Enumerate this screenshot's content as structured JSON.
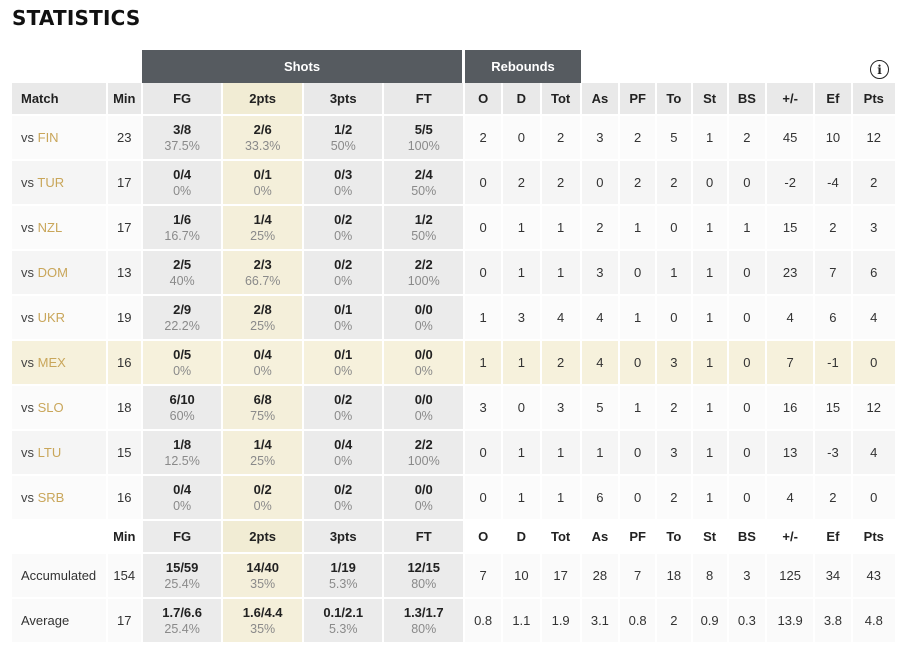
{
  "title": "STATISTICS",
  "groups": {
    "shots": "Shots",
    "rebounds": "Rebounds"
  },
  "headers": [
    "Match",
    "Min",
    "FG",
    "2pts",
    "3pts",
    "FT",
    "O",
    "D",
    "Tot",
    "As",
    "PF",
    "To",
    "St",
    "BS",
    "+/-",
    "Ef",
    "Pts"
  ],
  "rows": [
    {
      "vs": "vs",
      "opp": "FIN",
      "min": "23",
      "fg": [
        "3/8",
        "37.5%"
      ],
      "p2": [
        "2/6",
        "33.3%"
      ],
      "p3": [
        "1/2",
        "50%"
      ],
      "ft": [
        "5/5",
        "100%"
      ],
      "o": "2",
      "d": "0",
      "tot": "2",
      "as": "3",
      "pf": "2",
      "to": "5",
      "st": "1",
      "bs": "2",
      "pm": "45",
      "ef": "10",
      "pts": "12"
    },
    {
      "vs": "vs",
      "opp": "TUR",
      "min": "17",
      "fg": [
        "0/4",
        "0%"
      ],
      "p2": [
        "0/1",
        "0%"
      ],
      "p3": [
        "0/3",
        "0%"
      ],
      "ft": [
        "2/4",
        "50%"
      ],
      "o": "0",
      "d": "2",
      "tot": "2",
      "as": "0",
      "pf": "2",
      "to": "2",
      "st": "0",
      "bs": "0",
      "pm": "-2",
      "ef": "-4",
      "pts": "2"
    },
    {
      "vs": "vs",
      "opp": "NZL",
      "min": "17",
      "fg": [
        "1/6",
        "16.7%"
      ],
      "p2": [
        "1/4",
        "25%"
      ],
      "p3": [
        "0/2",
        "0%"
      ],
      "ft": [
        "1/2",
        "50%"
      ],
      "o": "0",
      "d": "1",
      "tot": "1",
      "as": "2",
      "pf": "1",
      "to": "0",
      "st": "1",
      "bs": "1",
      "pm": "15",
      "ef": "2",
      "pts": "3"
    },
    {
      "vs": "vs",
      "opp": "DOM",
      "min": "13",
      "fg": [
        "2/5",
        "40%"
      ],
      "p2": [
        "2/3",
        "66.7%"
      ],
      "p3": [
        "0/2",
        "0%"
      ],
      "ft": [
        "2/2",
        "100%"
      ],
      "o": "0",
      "d": "1",
      "tot": "1",
      "as": "3",
      "pf": "0",
      "to": "1",
      "st": "1",
      "bs": "0",
      "pm": "23",
      "ef": "7",
      "pts": "6"
    },
    {
      "vs": "vs",
      "opp": "UKR",
      "min": "19",
      "fg": [
        "2/9",
        "22.2%"
      ],
      "p2": [
        "2/8",
        "25%"
      ],
      "p3": [
        "0/1",
        "0%"
      ],
      "ft": [
        "0/0",
        "0%"
      ],
      "o": "1",
      "d": "3",
      "tot": "4",
      "as": "4",
      "pf": "1",
      "to": "0",
      "st": "1",
      "bs": "0",
      "pm": "4",
      "ef": "6",
      "pts": "4"
    },
    {
      "vs": "vs",
      "opp": "MEX",
      "min": "16",
      "fg": [
        "0/5",
        "0%"
      ],
      "p2": [
        "0/4",
        "0%"
      ],
      "p3": [
        "0/1",
        "0%"
      ],
      "ft": [
        "0/0",
        "0%"
      ],
      "o": "1",
      "d": "1",
      "tot": "2",
      "as": "4",
      "pf": "0",
      "to": "3",
      "st": "1",
      "bs": "0",
      "pm": "7",
      "ef": "-1",
      "pts": "0",
      "highlight": true
    },
    {
      "vs": "vs",
      "opp": "SLO",
      "min": "18",
      "fg": [
        "6/10",
        "60%"
      ],
      "p2": [
        "6/8",
        "75%"
      ],
      "p3": [
        "0/2",
        "0%"
      ],
      "ft": [
        "0/0",
        "0%"
      ],
      "o": "3",
      "d": "0",
      "tot": "3",
      "as": "5",
      "pf": "1",
      "to": "2",
      "st": "1",
      "bs": "0",
      "pm": "16",
      "ef": "15",
      "pts": "12"
    },
    {
      "vs": "vs",
      "opp": "LTU",
      "min": "15",
      "fg": [
        "1/8",
        "12.5%"
      ],
      "p2": [
        "1/4",
        "25%"
      ],
      "p3": [
        "0/4",
        "0%"
      ],
      "ft": [
        "2/2",
        "100%"
      ],
      "o": "0",
      "d": "1",
      "tot": "1",
      "as": "1",
      "pf": "0",
      "to": "3",
      "st": "1",
      "bs": "0",
      "pm": "13",
      "ef": "-3",
      "pts": "4"
    },
    {
      "vs": "vs",
      "opp": "SRB",
      "min": "16",
      "fg": [
        "0/4",
        "0%"
      ],
      "p2": [
        "0/2",
        "0%"
      ],
      "p3": [
        "0/2",
        "0%"
      ],
      "ft": [
        "0/0",
        "0%"
      ],
      "o": "0",
      "d": "1",
      "tot": "1",
      "as": "6",
      "pf": "0",
      "to": "2",
      "st": "1",
      "bs": "0",
      "pm": "4",
      "ef": "2",
      "pts": "0"
    }
  ],
  "summary_headers": [
    "",
    "Min",
    "FG",
    "2pts",
    "3pts",
    "FT",
    "O",
    "D",
    "Tot",
    "As",
    "PF",
    "To",
    "St",
    "BS",
    "+/-",
    "Ef",
    "Pts"
  ],
  "summary": [
    {
      "label": "Accumulated",
      "min": "154",
      "fg": [
        "15/59",
        "25.4%"
      ],
      "p2": [
        "14/40",
        "35%"
      ],
      "p3": [
        "1/19",
        "5.3%"
      ],
      "ft": [
        "12/15",
        "80%"
      ],
      "o": "7",
      "d": "10",
      "tot": "17",
      "as": "28",
      "pf": "7",
      "to": "18",
      "st": "8",
      "bs": "3",
      "pm": "125",
      "ef": "34",
      "pts": "43"
    },
    {
      "label": "Average",
      "min": "17",
      "fg": [
        "1.7/6.6",
        "25.4%"
      ],
      "p2": [
        "1.6/4.4",
        "35%"
      ],
      "p3": [
        "0.1/2.1",
        "5.3%"
      ],
      "ft": [
        "1.3/1.7",
        "80%"
      ],
      "o": "0.8",
      "d": "1.1",
      "tot": "1.9",
      "as": "3.1",
      "pf": "0.8",
      "to": "2",
      "st": "0.9",
      "bs": "0.3",
      "pm": "13.9",
      "ef": "3.8",
      "pts": "4.8"
    }
  ],
  "colors": {
    "header_dark": "#565b60",
    "beige": "#f4efda",
    "opponent": "#c9a65a"
  },
  "icons": {
    "info": "info-icon"
  }
}
